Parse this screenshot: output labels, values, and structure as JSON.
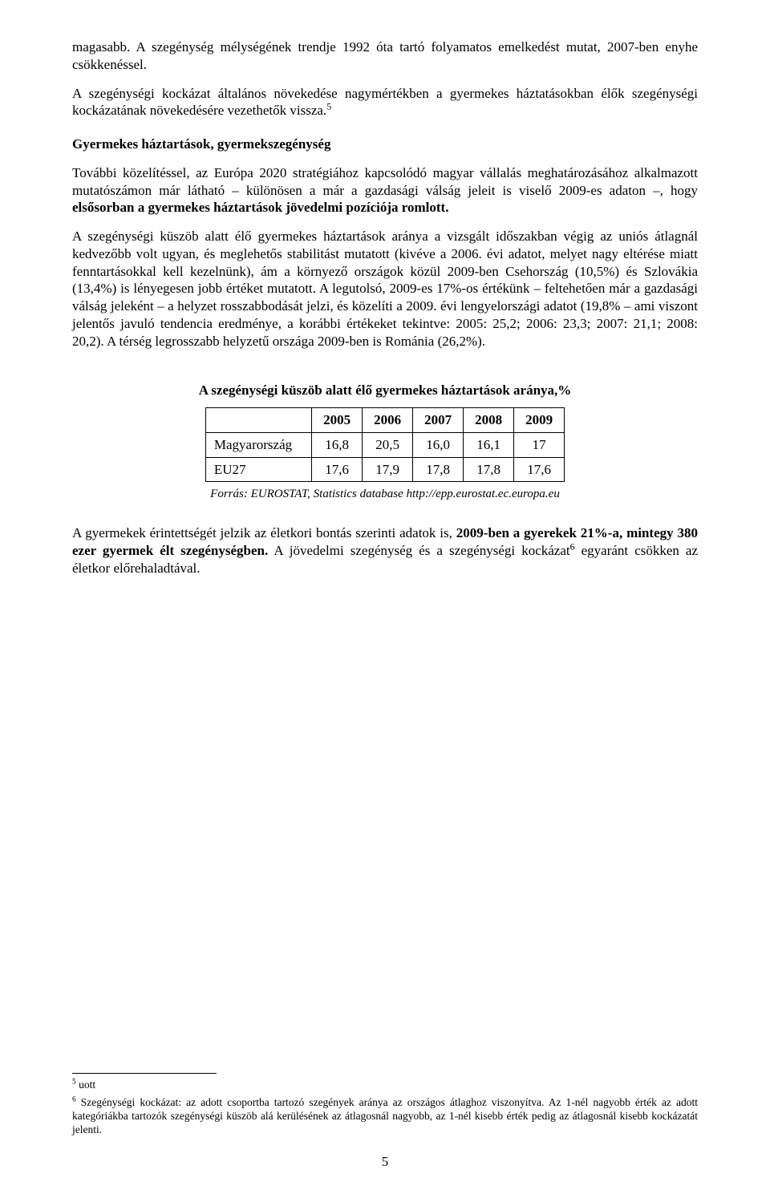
{
  "paragraphs": {
    "p1_a": "magasabb. A szegénység mélységének trendje 1992 óta tartó folyamatos emelkedést mutat, 2007-ben enyhe csökkenéssel.",
    "p2_a": "A szegénységi kockázat általános növekedése nagymértékben a gyermekes háztatásokban élők szegénységi kockázatának növekedésére vezethetők vissza.",
    "p2_sup": "5",
    "heading1": "Gyermekes háztartások, gyermekszegénység",
    "p3_a": "További közelítéssel, az Európa 2020 stratégiához kapcsolódó magyar vállalás meghatározásához alkalmazott mutatószámon már látható – különösen a már a gazdasági válság jeleit is viselő 2009-es adaton –, hogy ",
    "p3_b": "elsősorban a gyermekes háztartások jövedelmi pozíciója romlott.",
    "p4": "A szegénységi küszöb alatt élő gyermekes háztartások aránya a vizsgált időszakban végig az uniós átlagnál kedvezőbb volt ugyan, és meglehetős stabilitást mutatott (kivéve a 2006. évi adatot, melyet nagy eltérése miatt fenntartásokkal kell kezelnünk), ám a környező országok közül 2009-ben Csehország (10,5%) és Szlovákia (13,4%) is lényegesen jobb értéket mutatott. A legutolsó, 2009-es 17%-os értékünk – feltehetően már a gazdasági válság jeleként – a helyzet rosszabbodását jelzi, és közelíti a 2009. évi lengyelországi adatot (19,8% – ami viszont jelentős javuló tendencia eredménye, a korábbi értékeket tekintve: 2005: 25,2; 2006: 23,3; 2007: 21,1; 2008: 20,2). A térség legrosszabb helyzetű országa 2009-ben is Románia (26,2%).",
    "p5_a": "A gyermekek érintettségét jelzik az életkori bontás szerinti adatok is, ",
    "p5_b": "2009-ben a gyerekek 21%-a, mintegy 380 ezer gyermek élt szegénységben.",
    "p5_c": " A jövedelmi szegénység és a szegénységi kockázat",
    "p5_sup": "6",
    "p5_d": " egyaránt csökken az életkor előrehaladtával."
  },
  "table": {
    "title": "A szegénységi küszöb alatt élő gyermekes háztartások aránya,%",
    "years": [
      "2005",
      "2006",
      "2007",
      "2008",
      "2009"
    ],
    "rows": [
      {
        "label": "Magyarország",
        "vals": [
          "16,8",
          "20,5",
          "16,0",
          "16,1",
          "17"
        ]
      },
      {
        "label": "EU27",
        "vals": [
          "17,6",
          "17,9",
          "17,8",
          "17,8",
          "17,6"
        ]
      }
    ],
    "source": "Forrás: EUROSTAT, Statistics database http://epp.eurostat.ec.europa.eu"
  },
  "footnotes": {
    "f5_sup": "5",
    "f5": " uott",
    "f6_sup": "6",
    "f6": " Szegénységi kockázat: az adott csoportba tartozó szegények aránya az országos átlaghoz viszonyítva. Az 1-nél nagyobb érték az adott kategóriákba tartozók szegénységi küszöb alá kerülésének az átlagosnál nagyobb, az 1-nél kisebb érték pedig az átlagosnál kisebb kockázatát jelenti."
  },
  "page_number": "5"
}
